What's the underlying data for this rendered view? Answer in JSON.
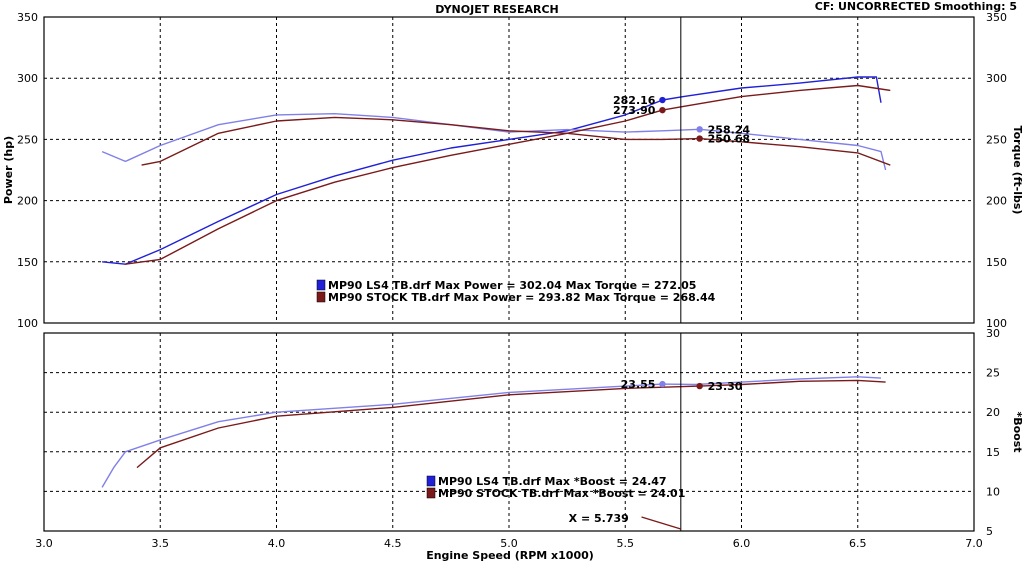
{
  "header": {
    "title": "DYNOJET RESEARCH",
    "right": "CF: UNCORRECTED  Smoothing: 5"
  },
  "chart_data": [
    {
      "type": "line",
      "panel": "top",
      "xlim": [
        3.0,
        7.0
      ],
      "ylim": [
        100,
        350
      ],
      "y2lim": [
        100,
        350
      ],
      "ylabel": "Power (hp)",
      "y2label": "Torque (ft-lbs)",
      "yticks": [
        "100",
        "150",
        "200",
        "250",
        "300",
        "350"
      ],
      "y2ticks": [
        "100",
        "150",
        "200",
        "250",
        "300",
        "350"
      ],
      "grid": true,
      "series": [
        {
          "name": "MP90 LS4 TB.drf",
          "measure": "power",
          "color": "#2020d8",
          "x": [
            3.25,
            3.35,
            3.5,
            3.75,
            4.0,
            4.25,
            4.5,
            4.75,
            5.0,
            5.25,
            5.5,
            5.66,
            5.75,
            6.0,
            6.25,
            6.5,
            6.58,
            6.6
          ],
          "y": [
            150,
            148,
            160,
            183,
            205,
            220,
            233,
            243,
            250,
            257,
            270,
            282.16,
            285,
            292,
            296,
            301,
            301,
            280
          ]
        },
        {
          "name": "MP90 LS4 TB.drf",
          "measure": "torque",
          "color": "#8080e8",
          "x": [
            3.25,
            3.35,
            3.5,
            3.75,
            4.0,
            4.25,
            4.5,
            4.75,
            5.0,
            5.25,
            5.5,
            5.66,
            5.82,
            6.0,
            6.25,
            6.5,
            6.6,
            6.62
          ],
          "y": [
            240,
            232,
            245,
            262,
            270,
            271,
            268,
            262,
            256,
            258,
            256,
            257,
            258.24,
            255,
            250,
            245,
            240,
            225
          ]
        },
        {
          "name": "MP90 STOCK TB.drf",
          "measure": "power",
          "color": "#7a1a1a",
          "x": [
            3.35,
            3.5,
            3.75,
            4.0,
            4.25,
            4.5,
            4.75,
            5.0,
            5.25,
            5.5,
            5.66,
            5.75,
            6.0,
            6.25,
            6.5,
            6.64
          ],
          "y": [
            148,
            152,
            177,
            200,
            215,
            227,
            237,
            246,
            255,
            265,
            273.9,
            277,
            285,
            290,
            294,
            290
          ]
        },
        {
          "name": "MP90 STOCK TB.drf",
          "measure": "torque",
          "color": "#7a1a1a",
          "x": [
            3.42,
            3.5,
            3.75,
            4.0,
            4.25,
            4.5,
            4.75,
            5.0,
            5.25,
            5.5,
            5.66,
            5.82,
            6.0,
            6.25,
            6.5,
            6.64
          ],
          "y": [
            229,
            232,
            255,
            265,
            268,
            266,
            262,
            257,
            255,
            250,
            250,
            250.68,
            248,
            244,
            239,
            229
          ]
        }
      ],
      "markers": [
        {
          "label": "282.16",
          "x": 5.66,
          "y": 282.16,
          "color": "#2020d8"
        },
        {
          "label": "273.90",
          "x": 5.66,
          "y": 273.9,
          "color": "#7a1a1a"
        },
        {
          "label": "258.24",
          "x": 5.82,
          "y": 258.24,
          "color": "#8080e8"
        },
        {
          "label": "250.68",
          "x": 5.82,
          "y": 250.68,
          "color": "#7a1a1a"
        }
      ],
      "legend": [
        {
          "color": "#2020d8",
          "text": "MP90 LS4 TB.drf Max Power = 302.04     Max Torque = 272.05"
        },
        {
          "color": "#7a1a1a",
          "text": "MP90 STOCK TB.drf Max Power = 293.82     Max Torque = 268.44"
        }
      ]
    },
    {
      "type": "line",
      "panel": "bottom",
      "xlim": [
        3.0,
        7.0
      ],
      "y2lim": [
        5,
        30
      ],
      "y2label": "*Boost",
      "y2ticks": [
        "5",
        "10",
        "15",
        "20",
        "25",
        "30"
      ],
      "xlabel": "Engine Speed (RPM x1000)",
      "xticks": [
        "3.0",
        "3.5",
        "4.0",
        "4.5",
        "5.0",
        "5.5",
        "6.0",
        "6.5",
        "7.0"
      ],
      "grid": true,
      "series": [
        {
          "name": "MP90 LS4 TB.drf",
          "color": "#8080e8",
          "x": [
            3.25,
            3.3,
            3.35,
            3.5,
            3.75,
            4.0,
            4.5,
            5.0,
            5.5,
            5.66,
            5.8,
            6.0,
            6.25,
            6.5,
            6.6
          ],
          "y": [
            10.5,
            13,
            15,
            16.5,
            18.8,
            20,
            21,
            22.5,
            23.3,
            23.55,
            23.5,
            23.8,
            24.2,
            24.47,
            24.3
          ]
        },
        {
          "name": "MP90 STOCK TB.drf",
          "color": "#7a1a1a",
          "x": [
            3.4,
            3.5,
            3.75,
            4.0,
            4.5,
            5.0,
            5.5,
            5.82,
            6.0,
            6.25,
            6.5,
            6.62
          ],
          "y": [
            13,
            15.5,
            18,
            19.5,
            20.6,
            22.2,
            23,
            23.3,
            23.5,
            23.9,
            24.01,
            23.8
          ]
        }
      ],
      "markers": [
        {
          "label": "23.55",
          "x": 5.66,
          "y": 23.55,
          "color": "#8080e8"
        },
        {
          "label": "23.30",
          "x": 5.82,
          "y": 23.3,
          "color": "#7a1a1a"
        }
      ],
      "legend": [
        {
          "color": "#2020d8",
          "text": "MP90 LS4 TB.drf Max *Boost = 24.47"
        },
        {
          "color": "#7a1a1a",
          "text": "MP90 STOCK TB.drf Max *Boost = 24.01"
        }
      ],
      "cursor": {
        "x": 5.739,
        "label": "X = 5.739"
      }
    }
  ]
}
